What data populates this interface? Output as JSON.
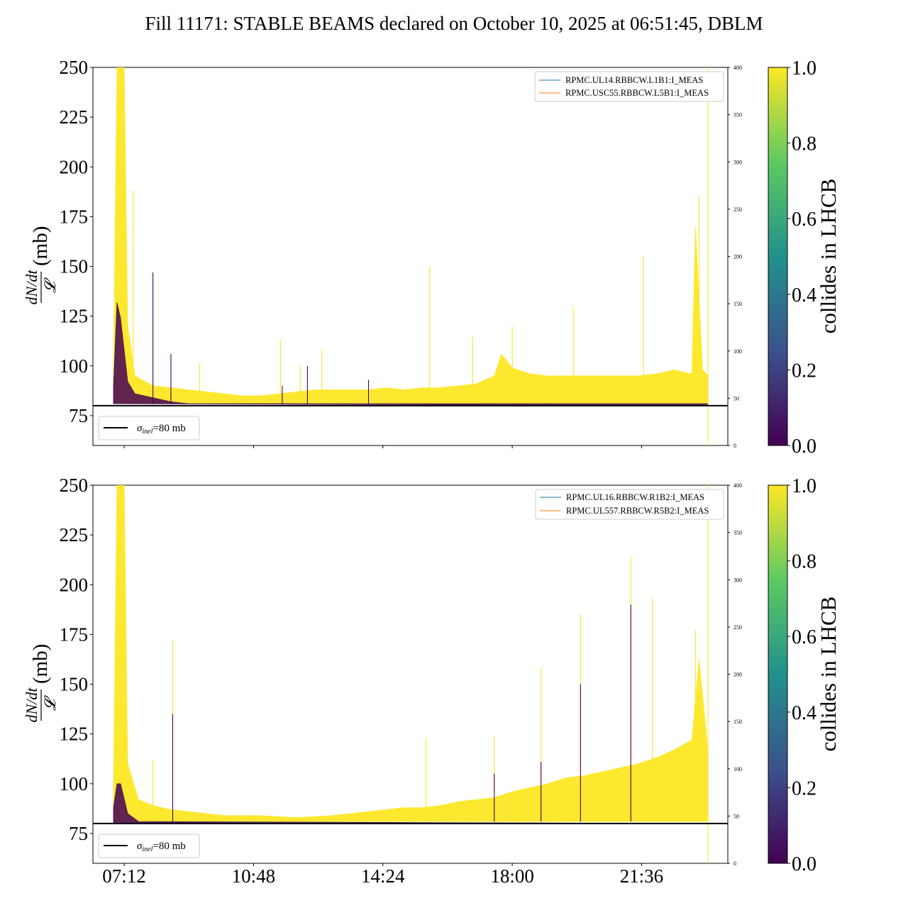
{
  "figure": {
    "title": "Fill 11171: STABLE BEAMS declared on October 10, 2025 at 06:51:45, DBLM"
  },
  "colors": {
    "viridis_stops": [
      "#440154",
      "#3b528b",
      "#21918c",
      "#5ec962",
      "#fde725"
    ],
    "low_collision": "#440154",
    "high_collision": "#fde725",
    "legend_line_1": "#1f77b4",
    "legend_line_2": "#ff7f0e",
    "reference_line": "#000000"
  },
  "chart_data": [
    {
      "type": "area",
      "ylabel_num": "dN/dt",
      "ylabel_den": "𝓛",
      "ylabel_unit": "(mb)",
      "ylim": [
        60,
        250
      ],
      "yticks": [
        75,
        100,
        125,
        150,
        175,
        200,
        225,
        250
      ],
      "y2lim": [
        0,
        400
      ],
      "y2ticks": [
        0,
        50,
        100,
        150,
        200,
        250,
        300,
        350,
        400
      ],
      "xlim_hours": [
        6.33,
        24.0
      ],
      "xticks": [
        "07:12",
        "10:48",
        "14:24",
        "18:00",
        "21:36"
      ],
      "xtick_hours": [
        7.2,
        10.8,
        14.4,
        18.0,
        21.6
      ],
      "show_xtick_labels": false,
      "legend_top_right": [
        "RPMC.UL14.RBBCW.L1B1:I_MEAS",
        "RPMC.USC55.RBBCW.L5B1:I_MEAS"
      ],
      "reference_line": {
        "value": 80,
        "label_symbol": "σ",
        "label_sub": "inel",
        "label_text": "=80 mb"
      },
      "colorbar": {
        "label": "collides in LHCB",
        "ticks": [
          "0.0",
          "0.2",
          "0.4",
          "0.6",
          "0.8",
          "1.0"
        ],
        "range": [
          0,
          1
        ]
      },
      "end_marker_hour": 23.45,
      "series": [
        {
          "collides": 1.0,
          "upper": [
            [
              6.9,
              96
            ],
            [
              7.0,
              250
            ],
            [
              7.2,
              250
            ],
            [
              7.3,
              120
            ],
            [
              7.5,
              95
            ],
            [
              8.0,
              90
            ],
            [
              8.5,
              89
            ],
            [
              9.0,
              88
            ],
            [
              9.5,
              87
            ],
            [
              10.0,
              86
            ],
            [
              10.5,
              85
            ],
            [
              11.0,
              85
            ],
            [
              11.5,
              86
            ],
            [
              12.0,
              87
            ],
            [
              12.5,
              88
            ],
            [
              13.0,
              88
            ],
            [
              13.5,
              88
            ],
            [
              14.0,
              88
            ],
            [
              14.5,
              89
            ],
            [
              15.0,
              88
            ],
            [
              15.5,
              89
            ],
            [
              16.0,
              89
            ],
            [
              16.5,
              90
            ],
            [
              17.0,
              91
            ],
            [
              17.5,
              95
            ],
            [
              17.7,
              106
            ],
            [
              18.0,
              99
            ],
            [
              18.5,
              96
            ],
            [
              19.0,
              95
            ],
            [
              19.5,
              95
            ],
            [
              20.0,
              95
            ],
            [
              20.5,
              95
            ],
            [
              21.0,
              95
            ],
            [
              21.5,
              95
            ],
            [
              22.0,
              96
            ],
            [
              22.5,
              98
            ],
            [
              23.0,
              96
            ],
            [
              23.1,
              170
            ],
            [
              23.3,
              98
            ],
            [
              23.45,
              95
            ]
          ],
          "lower": [
            [
              6.9,
              81
            ],
            [
              23.45,
              81
            ]
          ],
          "spikes": [
            [
              7.45,
              188
            ],
            [
              9.3,
              101
            ],
            [
              11.55,
              113
            ],
            [
              12.1,
              100
            ],
            [
              12.7,
              108
            ],
            [
              15.7,
              150
            ],
            [
              16.9,
              115
            ],
            [
              18.0,
              120
            ],
            [
              19.7,
              130
            ],
            [
              21.65,
              155
            ],
            [
              23.2,
              185
            ]
          ]
        },
        {
          "collides": 0.0,
          "upper": [
            [
              6.9,
              90
            ],
            [
              7.0,
              132
            ],
            [
              7.1,
              124
            ],
            [
              7.3,
              92
            ],
            [
              7.5,
              86
            ],
            [
              8.0,
              84
            ],
            [
              8.5,
              82
            ],
            [
              9.0,
              81
            ],
            [
              23.45,
              81
            ]
          ],
          "lower": [
            [
              6.9,
              81
            ],
            [
              23.45,
              80
            ]
          ],
          "spikes": [
            [
              8.0,
              147
            ],
            [
              8.5,
              106
            ],
            [
              11.6,
              90
            ],
            [
              12.3,
              100
            ],
            [
              14.0,
              93
            ]
          ]
        }
      ]
    },
    {
      "type": "area",
      "ylabel_num": "dN/dt",
      "ylabel_den": "𝓛",
      "ylabel_unit": "(mb)",
      "ylim": [
        60,
        250
      ],
      "yticks": [
        75,
        100,
        125,
        150,
        175,
        200,
        225,
        250
      ],
      "y2lim": [
        0,
        400
      ],
      "y2ticks": [
        0,
        50,
        100,
        150,
        200,
        250,
        300,
        350,
        400
      ],
      "xlim_hours": [
        6.33,
        24.0
      ],
      "xticks": [
        "07:12",
        "10:48",
        "14:24",
        "18:00",
        "21:36"
      ],
      "xtick_hours": [
        7.2,
        10.8,
        14.4,
        18.0,
        21.6
      ],
      "show_xtick_labels": true,
      "legend_top_right": [
        "RPMC.UL16.RBBCW.R1B2:I_MEAS",
        "RPMC.UL557.RBBCW.R5B2:I_MEAS"
      ],
      "reference_line": {
        "value": 80,
        "label_symbol": "σ",
        "label_sub": "inel",
        "label_text": "=80 mb"
      },
      "colorbar": {
        "label": "collides in LHCB",
        "ticks": [
          "0.0",
          "0.2",
          "0.4",
          "0.6",
          "0.8",
          "1.0"
        ],
        "range": [
          0,
          1
        ]
      },
      "end_marker_hour": 23.45,
      "series": [
        {
          "collides": 1.0,
          "upper": [
            [
              6.9,
              96
            ],
            [
              7.0,
              250
            ],
            [
              7.2,
              250
            ],
            [
              7.3,
              110
            ],
            [
              7.6,
              92
            ],
            [
              8.0,
              89
            ],
            [
              8.5,
              87
            ],
            [
              9.0,
              86
            ],
            [
              9.5,
              85
            ],
            [
              10.0,
              84
            ],
            [
              11.0,
              84
            ],
            [
              12.0,
              83
            ],
            [
              13.0,
              84
            ],
            [
              13.5,
              85
            ],
            [
              14.0,
              86
            ],
            [
              14.5,
              87
            ],
            [
              15.0,
              88
            ],
            [
              15.5,
              88
            ],
            [
              16.0,
              89
            ],
            [
              16.5,
              91
            ],
            [
              17.0,
              92
            ],
            [
              17.5,
              93
            ],
            [
              18.0,
              96
            ],
            [
              18.5,
              98
            ],
            [
              19.0,
              100
            ],
            [
              19.5,
              103
            ],
            [
              20.0,
              104
            ],
            [
              20.5,
              106
            ],
            [
              21.0,
              108
            ],
            [
              21.5,
              110
            ],
            [
              22.0,
              113
            ],
            [
              22.5,
              117
            ],
            [
              23.0,
              122
            ],
            [
              23.2,
              163
            ],
            [
              23.45,
              116
            ]
          ],
          "lower": [
            [
              6.9,
              81
            ],
            [
              23.45,
              81
            ]
          ],
          "spikes": [
            [
              8.0,
              112
            ],
            [
              8.55,
              172
            ],
            [
              15.6,
              123
            ],
            [
              17.5,
              124
            ],
            [
              18.8,
              158
            ],
            [
              19.9,
              185
            ],
            [
              21.3,
              214
            ],
            [
              21.9,
              193
            ],
            [
              23.1,
              177
            ]
          ]
        },
        {
          "collides": 0.0,
          "upper": [
            [
              6.9,
              88
            ],
            [
              7.0,
              100
            ],
            [
              7.1,
              100
            ],
            [
              7.3,
              85
            ],
            [
              7.6,
              81
            ],
            [
              23.45,
              80
            ]
          ],
          "lower": [
            [
              6.9,
              80
            ],
            [
              23.45,
              80
            ]
          ],
          "spikes": [
            [
              8.55,
              135
            ],
            [
              17.5,
              105
            ],
            [
              18.8,
              111
            ],
            [
              19.9,
              150
            ],
            [
              21.3,
              190
            ]
          ]
        }
      ]
    }
  ]
}
